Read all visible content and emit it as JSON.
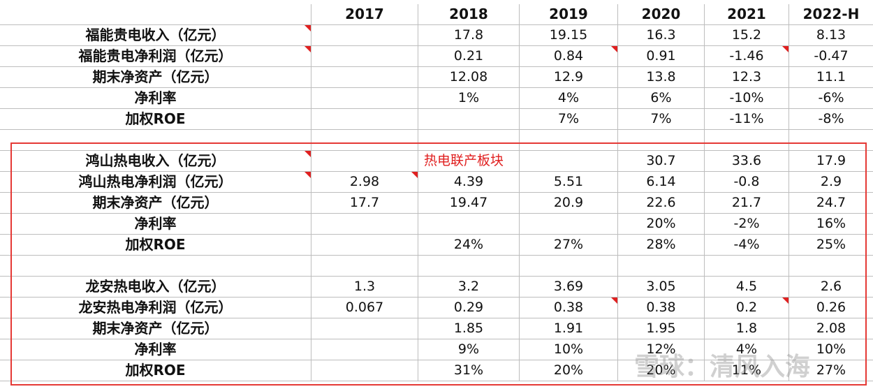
{
  "table": {
    "header": [
      "",
      "2017",
      "2018",
      "2019",
      "2020",
      "2021",
      "2022-H"
    ],
    "rows": [
      [
        "福能贵电收入（亿元）",
        "",
        "17.8",
        "19.15",
        "16.3",
        "15.2",
        "8.13"
      ],
      [
        "福能贵电净利润（亿元）",
        "",
        "0.21",
        "0.84",
        "0.91",
        "-1.46",
        "-0.47"
      ],
      [
        "期末净资产（亿元）",
        "",
        "12.08",
        "12.9",
        "13.8",
        "12.3",
        "11.1"
      ],
      [
        "净利率",
        "",
        "1%",
        "4%",
        "6%",
        "-10%",
        "-6%"
      ],
      [
        "加权ROE",
        "",
        "",
        "7%",
        "7%",
        "-11%",
        "-8%"
      ],
      [
        "",
        "",
        "",
        "",
        "",
        "",
        ""
      ],
      [
        "鸿山热电收入（亿元）",
        "",
        "",
        "",
        "30.7",
        "33.6",
        "17.9"
      ],
      [
        "鸿山热电净利润（亿元）",
        "2.98",
        "4.39",
        "5.51",
        "6.14",
        "-0.8",
        "2.9"
      ],
      [
        "期末净资产（亿元）",
        "17.7",
        "19.47",
        "20.9",
        "22.6",
        "21.7",
        "24.7"
      ],
      [
        "净利率",
        "",
        "",
        "",
        "20%",
        "-2%",
        "16%"
      ],
      [
        "加权ROE",
        "",
        "24%",
        "27%",
        "28%",
        "-4%",
        "25%"
      ],
      [
        "",
        "",
        "",
        "",
        "",
        "",
        ""
      ],
      [
        "龙安热电收入（亿元）",
        "1.3",
        "3.2",
        "3.69",
        "3.05",
        "4.5",
        "2.6"
      ],
      [
        "龙安热电净利润（亿元）",
        "0.067",
        "0.29",
        "0.38",
        "0.38",
        "0.2",
        "0.26"
      ],
      [
        "期末净资产（亿元）",
        "",
        "1.85",
        "1.91",
        "1.95",
        "1.8",
        "2.08"
      ],
      [
        "净利率",
        "",
        "9%",
        "10%",
        "12%",
        "4%",
        "10%"
      ],
      [
        "加权ROE",
        "",
        "31%",
        "20%",
        "20%",
        "11%",
        "27%"
      ]
    ],
    "segment_note": "热电联产板块",
    "comment_flags": [
      [
        1,
        0
      ],
      [
        2,
        0
      ],
      [
        2,
        3
      ],
      [
        2,
        5
      ],
      [
        7,
        0
      ],
      [
        8,
        0
      ],
      [
        8,
        1
      ],
      [
        14,
        3
      ],
      [
        14,
        5
      ]
    ]
  },
  "watermark": "雪球：清风入海",
  "colors": {
    "flag": "#e02020",
    "box": "#e53935",
    "grid": "#bdbdbd"
  }
}
